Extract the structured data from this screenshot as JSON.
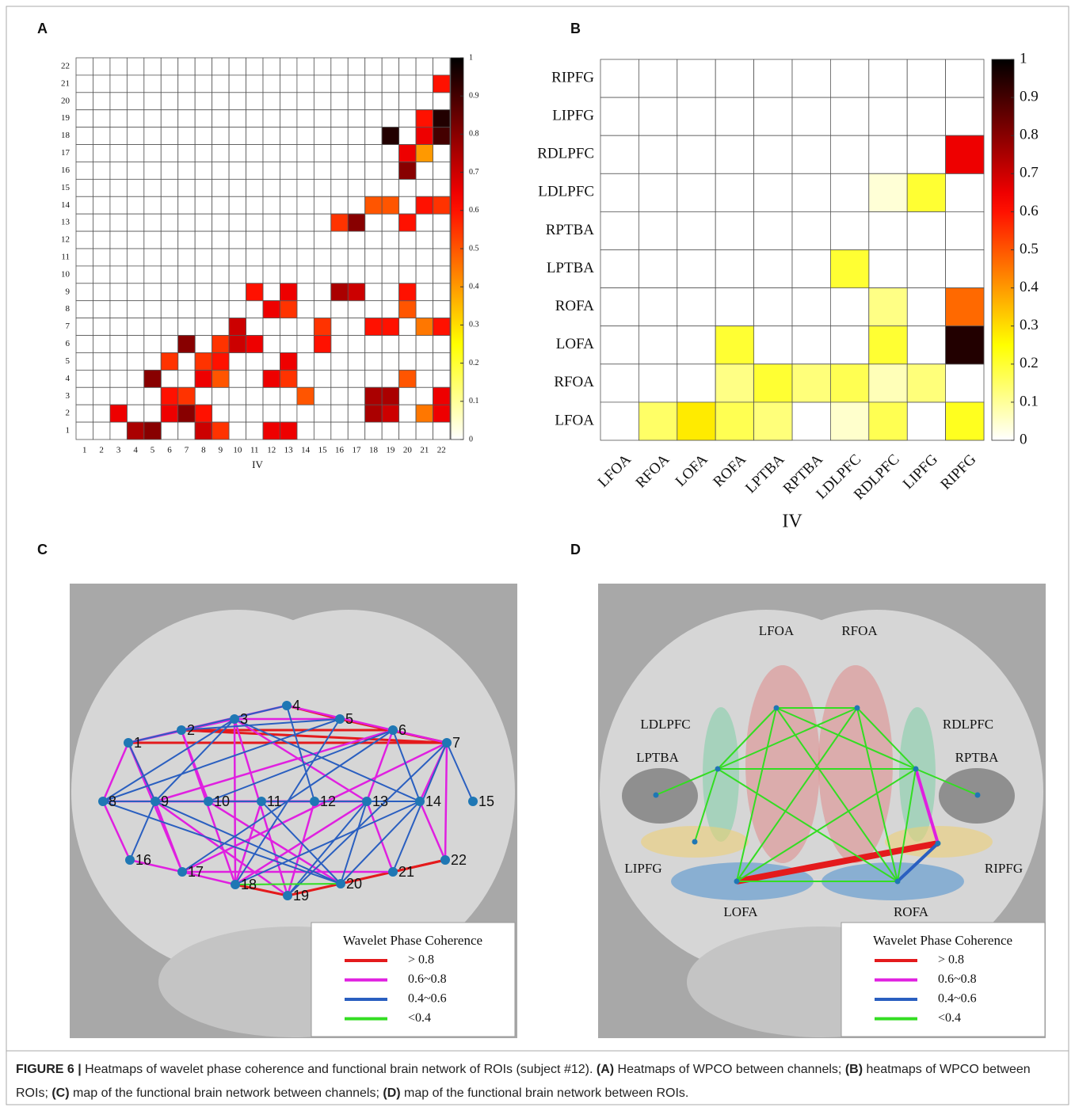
{
  "chart_data": [
    {
      "type": "heatmap",
      "panel": "A",
      "xlabel": "IV",
      "categories": [
        1,
        2,
        3,
        4,
        5,
        6,
        7,
        8,
        9,
        10,
        11,
        12,
        13,
        14,
        15,
        16,
        17,
        18,
        19,
        20,
        21,
        22
      ],
      "colormap": "hot_r",
      "clim": [
        0,
        1
      ],
      "cticks": [
        0,
        0.1,
        0.2,
        0.3,
        0.4,
        0.5,
        0.6,
        0.7,
        0.8,
        0.9,
        1
      ],
      "cells": [
        {
          "x": 4,
          "y": 1,
          "value": 0.75
        },
        {
          "x": 5,
          "y": 1,
          "value": 0.8
        },
        {
          "x": 8,
          "y": 1,
          "value": 0.7
        },
        {
          "x": 9,
          "y": 1,
          "value": 0.55
        },
        {
          "x": 12,
          "y": 1,
          "value": 0.65
        },
        {
          "x": 13,
          "y": 1,
          "value": 0.65
        },
        {
          "x": 3,
          "y": 2,
          "value": 0.65
        },
        {
          "x": 6,
          "y": 2,
          "value": 0.65
        },
        {
          "x": 7,
          "y": 2,
          "value": 0.8
        },
        {
          "x": 8,
          "y": 2,
          "value": 0.6
        },
        {
          "x": 18,
          "y": 2,
          "value": 0.75
        },
        {
          "x": 19,
          "y": 2,
          "value": 0.7
        },
        {
          "x": 21,
          "y": 2,
          "value": 0.45
        },
        {
          "x": 22,
          "y": 2,
          "value": 0.65
        },
        {
          "x": 6,
          "y": 3,
          "value": 0.6
        },
        {
          "x": 7,
          "y": 3,
          "value": 0.55
        },
        {
          "x": 14,
          "y": 3,
          "value": 0.5
        },
        {
          "x": 18,
          "y": 3,
          "value": 0.75
        },
        {
          "x": 19,
          "y": 3,
          "value": 0.75
        },
        {
          "x": 22,
          "y": 3,
          "value": 0.65
        },
        {
          "x": 5,
          "y": 4,
          "value": 0.8
        },
        {
          "x": 8,
          "y": 4,
          "value": 0.65
        },
        {
          "x": 9,
          "y": 4,
          "value": 0.5
        },
        {
          "x": 12,
          "y": 4,
          "value": 0.65
        },
        {
          "x": 13,
          "y": 4,
          "value": 0.55
        },
        {
          "x": 20,
          "y": 4,
          "value": 0.5
        },
        {
          "x": 6,
          "y": 5,
          "value": 0.55
        },
        {
          "x": 8,
          "y": 5,
          "value": 0.55
        },
        {
          "x": 9,
          "y": 5,
          "value": 0.6
        },
        {
          "x": 13,
          "y": 5,
          "value": 0.65
        },
        {
          "x": 7,
          "y": 6,
          "value": 0.8
        },
        {
          "x": 9,
          "y": 6,
          "value": 0.55
        },
        {
          "x": 10,
          "y": 6,
          "value": 0.7
        },
        {
          "x": 11,
          "y": 6,
          "value": 0.65
        },
        {
          "x": 15,
          "y": 6,
          "value": 0.6
        },
        {
          "x": 10,
          "y": 7,
          "value": 0.7
        },
        {
          "x": 15,
          "y": 7,
          "value": 0.55
        },
        {
          "x": 18,
          "y": 7,
          "value": 0.6
        },
        {
          "x": 19,
          "y": 7,
          "value": 0.6
        },
        {
          "x": 21,
          "y": 7,
          "value": 0.45
        },
        {
          "x": 22,
          "y": 7,
          "value": 0.6
        },
        {
          "x": 12,
          "y": 8,
          "value": 0.65
        },
        {
          "x": 13,
          "y": 8,
          "value": 0.55
        },
        {
          "x": 20,
          "y": 8,
          "value": 0.5
        },
        {
          "x": 11,
          "y": 9,
          "value": 0.6
        },
        {
          "x": 13,
          "y": 9,
          "value": 0.65
        },
        {
          "x": 16,
          "y": 9,
          "value": 0.75
        },
        {
          "x": 17,
          "y": 9,
          "value": 0.7
        },
        {
          "x": 20,
          "y": 9,
          "value": 0.6
        },
        {
          "x": 16,
          "y": 13,
          "value": 0.55
        },
        {
          "x": 17,
          "y": 13,
          "value": 0.8
        },
        {
          "x": 20,
          "y": 13,
          "value": 0.6
        },
        {
          "x": 18,
          "y": 14,
          "value": 0.5
        },
        {
          "x": 19,
          "y": 14,
          "value": 0.5
        },
        {
          "x": 21,
          "y": 14,
          "value": 0.6
        },
        {
          "x": 22,
          "y": 14,
          "value": 0.55
        },
        {
          "x": 20,
          "y": 16,
          "value": 0.8
        },
        {
          "x": 20,
          "y": 17,
          "value": 0.65
        },
        {
          "x": 21,
          "y": 17,
          "value": 0.4
        },
        {
          "x": 19,
          "y": 18,
          "value": 0.95
        },
        {
          "x": 21,
          "y": 18,
          "value": 0.65
        },
        {
          "x": 22,
          "y": 18,
          "value": 0.9
        },
        {
          "x": 21,
          "y": 19,
          "value": 0.6
        },
        {
          "x": 22,
          "y": 19,
          "value": 0.95
        },
        {
          "x": 22,
          "y": 21,
          "value": 0.6
        }
      ]
    },
    {
      "type": "heatmap",
      "panel": "B",
      "xlabel": "IV",
      "categories": [
        "LFOA",
        "RFOA",
        "LOFA",
        "ROFA",
        "LPTBA",
        "RPTBA",
        "LDLPFC",
        "RDLPFC",
        "LIPFG",
        "RIPFG"
      ],
      "colormap": "hot_r",
      "clim": [
        0,
        1
      ],
      "cticks": [
        0,
        0.1,
        0.2,
        0.3,
        0.4,
        0.5,
        0.6,
        0.7,
        0.8,
        0.9,
        1
      ],
      "cells": [
        {
          "x": "RIPFG",
          "y": "RDLPFC",
          "value": 0.65
        },
        {
          "x": "RDLPFC",
          "y": "LDLPFC",
          "value": 0.04
        },
        {
          "x": "LIPFG",
          "y": "LDLPFC",
          "value": 0.2
        },
        {
          "x": "LDLPFC",
          "y": "LPTBA",
          "value": 0.2
        },
        {
          "x": "RDLPFC",
          "y": "ROFA",
          "value": 0.12
        },
        {
          "x": "RIPFG",
          "y": "ROFA",
          "value": 0.47
        },
        {
          "x": "ROFA",
          "y": "LOFA",
          "value": 0.2
        },
        {
          "x": "RDLPFC",
          "y": "LOFA",
          "value": 0.2
        },
        {
          "x": "RIPFG",
          "y": "LOFA",
          "value": 0.95
        },
        {
          "x": "ROFA",
          "y": "RFOA",
          "value": 0.12
        },
        {
          "x": "LPTBA",
          "y": "RFOA",
          "value": 0.2
        },
        {
          "x": "RPTBA",
          "y": "RFOA",
          "value": 0.13
        },
        {
          "x": "LDLPFC",
          "y": "RFOA",
          "value": 0.17
        },
        {
          "x": "RDLPFC",
          "y": "RFOA",
          "value": 0.07
        },
        {
          "x": "LIPFG",
          "y": "RFOA",
          "value": 0.13
        },
        {
          "x": "RFOA",
          "y": "LFOA",
          "value": 0.15
        },
        {
          "x": "LOFA",
          "y": "LFOA",
          "value": 0.28
        },
        {
          "x": "ROFA",
          "y": "LFOA",
          "value": 0.17
        },
        {
          "x": "LPTBA",
          "y": "LFOA",
          "value": 0.13
        },
        {
          "x": "LDLPFC",
          "y": "LFOA",
          "value": 0.05
        },
        {
          "x": "RDLPFC",
          "y": "LFOA",
          "value": 0.17
        },
        {
          "x": "RIPFG",
          "y": "LFOA",
          "value": 0.22
        }
      ]
    },
    {
      "type": "network",
      "panel": "C",
      "nodes": [
        1,
        2,
        3,
        4,
        5,
        6,
        7,
        8,
        9,
        10,
        11,
        12,
        13,
        14,
        15,
        16,
        17,
        18,
        19,
        20,
        21,
        22
      ],
      "legend": {
        "title": "Wavelet Phase Coherence"
      },
      "levels": [
        {
          "label": "> 0.8",
          "color": "#e41a1c",
          "edges": [
            [
              2,
              7
            ],
            [
              1,
              7
            ],
            [
              4,
              5
            ],
            [
              5,
              7
            ],
            [
              18,
              19
            ],
            [
              19,
              20
            ],
            [
              21,
              22
            ],
            [
              20,
              22
            ],
            [
              2,
              6
            ]
          ]
        },
        {
          "label": "0.6~0.8",
          "color": "#e020e0",
          "edges": [
            [
              1,
              2
            ],
            [
              1,
              3
            ],
            [
              1,
              8
            ],
            [
              1,
              9
            ],
            [
              1,
              17
            ],
            [
              2,
              4
            ],
            [
              2,
              10
            ],
            [
              2,
              18
            ],
            [
              3,
              5
            ],
            [
              3,
              13
            ],
            [
              3,
              19
            ],
            [
              3,
              18
            ],
            [
              4,
              7
            ],
            [
              6,
              9
            ],
            [
              6,
              13
            ],
            [
              7,
              14
            ],
            [
              7,
              17
            ],
            [
              7,
              22
            ],
            [
              8,
              13
            ],
            [
              8,
              16
            ],
            [
              9,
              12
            ],
            [
              9,
              19
            ],
            [
              10,
              13
            ],
            [
              10,
              20
            ],
            [
              11,
              18
            ],
            [
              12,
              19
            ],
            [
              13,
              18
            ],
            [
              13,
              21
            ],
            [
              14,
              22
            ],
            [
              16,
              17
            ],
            [
              17,
              18
            ],
            [
              17,
              21
            ],
            [
              9,
              17
            ]
          ]
        },
        {
          "label": "0.4~0.6",
          "color": "#2a5fc0",
          "edges": [
            [
              1,
              9
            ],
            [
              1,
              4
            ],
            [
              2,
              5
            ],
            [
              3,
              8
            ],
            [
              3,
              14
            ],
            [
              4,
              12
            ],
            [
              5,
              8
            ],
            [
              5,
              18
            ],
            [
              6,
              14
            ],
            [
              7,
              15
            ],
            [
              7,
              21
            ],
            [
              8,
              12
            ],
            [
              3,
              9
            ],
            [
              9,
              20
            ],
            [
              6,
              10
            ],
            [
              11,
              20
            ],
            [
              12,
              14
            ],
            [
              13,
              19
            ],
            [
              13,
              20
            ],
            [
              14,
              20
            ],
            [
              9,
              16
            ],
            [
              6,
              17
            ],
            [
              14,
              18
            ],
            [
              7,
              19
            ],
            [
              8,
              20
            ]
          ]
        },
        {
          "label": "<0.4",
          "color": "#33dd22",
          "edges": [
            [
              18,
              20
            ]
          ]
        }
      ]
    },
    {
      "type": "network",
      "panel": "D",
      "nodes": [
        "LFOA",
        "RFOA",
        "LDLPFC",
        "RDLPFC",
        "LPTBA",
        "RPTBA",
        "LIPFG",
        "RIPFG",
        "LOFA",
        "ROFA"
      ],
      "legend": {
        "title": "Wavelet Phase Coherence"
      },
      "levels": [
        {
          "label": "> 0.8",
          "color": "#e41a1c",
          "edges": [
            [
              "LOFA",
              "RIPFG"
            ]
          ]
        },
        {
          "label": "0.6~0.8",
          "color": "#e020e0",
          "edges": [
            [
              "RDLPFC",
              "RIPFG"
            ]
          ]
        },
        {
          "label": "0.4~0.6",
          "color": "#2a5fc0",
          "edges": [
            [
              "ROFA",
              "RIPFG"
            ]
          ]
        },
        {
          "label": "<0.4",
          "color": "#33dd22",
          "edges": [
            [
              "LFOA",
              "RFOA"
            ],
            [
              "LFOA",
              "LDLPFC"
            ],
            [
              "LFOA",
              "LOFA"
            ],
            [
              "LFOA",
              "ROFA"
            ],
            [
              "LFOA",
              "RDLPFC"
            ],
            [
              "RFOA",
              "LDLPFC"
            ],
            [
              "RFOA",
              "RDLPFC"
            ],
            [
              "RFOA",
              "LOFA"
            ],
            [
              "RFOA",
              "ROFA"
            ],
            [
              "LDLPFC",
              "LPTBA"
            ],
            [
              "LDLPFC",
              "RDLPFC"
            ],
            [
              "LDLPFC",
              "LIPFG"
            ],
            [
              "LDLPFC",
              "ROFA"
            ],
            [
              "LOFA",
              "ROFA"
            ],
            [
              "RDLPFC",
              "LOFA"
            ],
            [
              "RDLPFC",
              "ROFA"
            ],
            [
              "RDLPFC",
              "RPTBA"
            ]
          ]
        }
      ]
    }
  ],
  "caption": {
    "label": "FIGURE 6 |",
    "text": "Heatmaps of wavelet phase coherence and functional brain network of ROIs (subject #12).",
    "panels": [
      {
        "key": "(A)",
        "text": "Heatmaps of WPCO between channels;"
      },
      {
        "key": "(B)",
        "text": "heatmaps of WPCO between ROIs;"
      },
      {
        "key": "(C)",
        "text": "map of the functional brain network between channels;"
      },
      {
        "key": "(D)",
        "text": "map of the functional brain network between ROIs."
      }
    ]
  }
}
